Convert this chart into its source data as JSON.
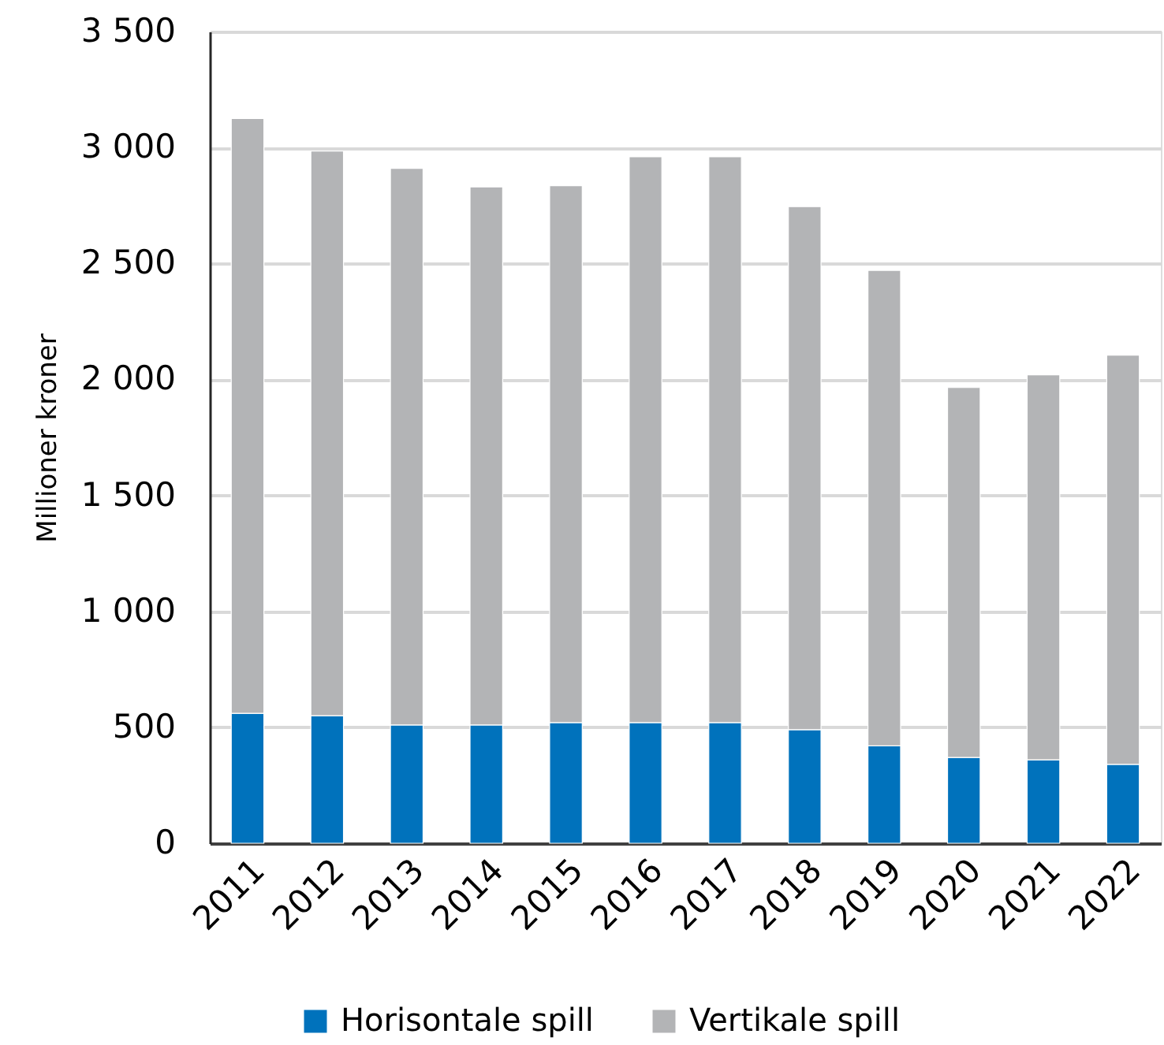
{
  "chart_data": {
    "type": "bar",
    "stacked": true,
    "ylabel": "Millioner kroner",
    "categories": [
      "2011",
      "2012",
      "2013",
      "2014",
      "2015",
      "2016",
      "2017",
      "2018",
      "2019",
      "2020",
      "2021",
      "2022"
    ],
    "series": [
      {
        "name": "Horisontale spill",
        "color": "#0072bc",
        "values": [
          560,
          550,
          510,
          510,
          520,
          520,
          520,
          490,
          420,
          370,
          360,
          340
        ]
      },
      {
        "name": "Vertikale spill",
        "color": "#b3b4b6",
        "values": [
          2565,
          2435,
          2400,
          2320,
          2315,
          2440,
          2440,
          2255,
          2050,
          1595,
          1660,
          1765
        ]
      }
    ],
    "ylim": [
      0,
      3500
    ],
    "yticks": [
      0,
      500,
      {
        "value": 1000,
        "label": "1 000"
      },
      {
        "value": 1500,
        "label": "1 500"
      },
      {
        "value": 2000,
        "label": "2 000"
      },
      {
        "value": 2500,
        "label": "2 500"
      },
      {
        "value": 3000,
        "label": "3 000"
      },
      {
        "value": 3500,
        "label": "3 500"
      }
    ],
    "grid": "y",
    "legend": "bottom"
  }
}
